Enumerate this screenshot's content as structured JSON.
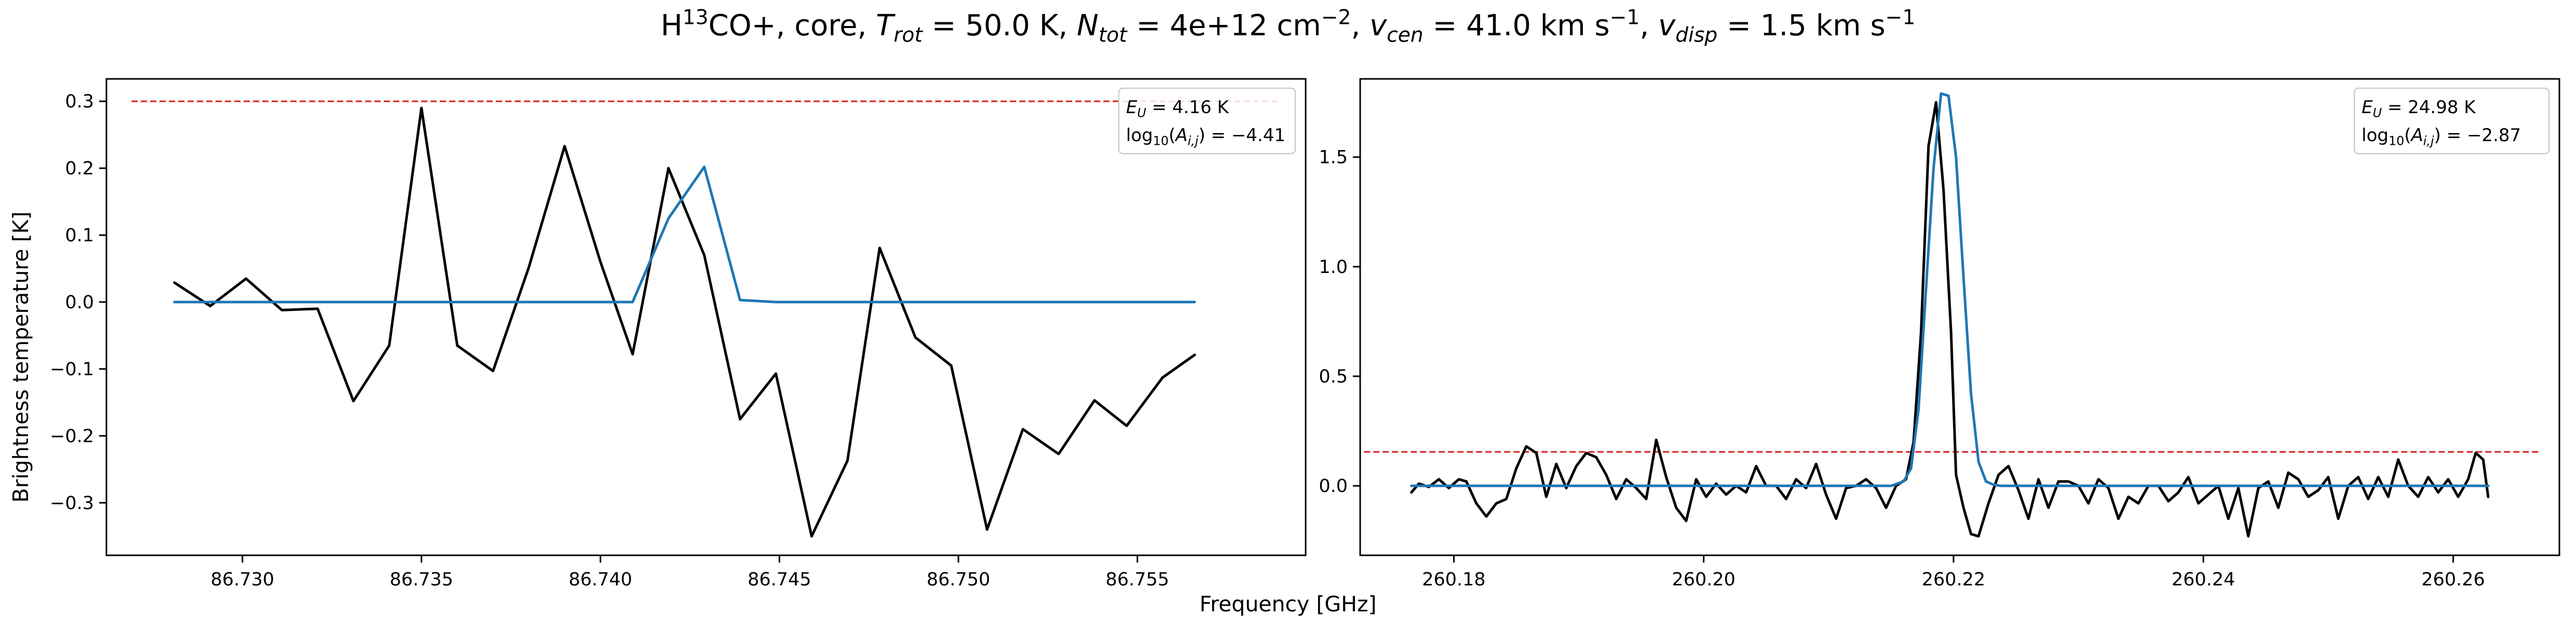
{
  "figure": {
    "title_parts": [
      {
        "t": "H",
        "s": "n"
      },
      {
        "t": "13",
        "s": "sup"
      },
      {
        "t": "CO+, core, ",
        "s": "n"
      },
      {
        "t": "T",
        "s": "i"
      },
      {
        "t": "rot",
        "s": "isub"
      },
      {
        "t": " =  50.0 K, ",
        "s": "n"
      },
      {
        "t": "N",
        "s": "i"
      },
      {
        "t": "tot",
        "s": "isub"
      },
      {
        "t": " =  4e+12 cm",
        "s": "n"
      },
      {
        "t": "−2",
        "s": "sup"
      },
      {
        "t": ", ",
        "s": "n"
      },
      {
        "t": "v",
        "s": "i"
      },
      {
        "t": "cen",
        "s": "isub"
      },
      {
        "t": " =  41.0 km s",
        "s": "n"
      },
      {
        "t": "−1",
        "s": "sup"
      },
      {
        "t": ", ",
        "s": "n"
      },
      {
        "t": "v",
        "s": "i"
      },
      {
        "t": "disp",
        "s": "isub"
      },
      {
        "t": " =  1.5 km s",
        "s": "n"
      },
      {
        "t": "−1",
        "s": "sup"
      }
    ],
    "xlabel": "Frequency [GHz]",
    "ylabel": "Brightness temperature [K]"
  },
  "chart_data": [
    {
      "type": "line",
      "xlim": [
        86.7262,
        86.7597
      ],
      "ylim": [
        -0.3785,
        0.3335
      ],
      "xticks": [
        86.73,
        86.735,
        86.74,
        86.745,
        86.75,
        86.755
      ],
      "xtick_labels": [
        "86.730",
        "86.735",
        "86.740",
        "86.745",
        "86.750",
        "86.755"
      ],
      "yticks": [
        -0.3,
        -0.2,
        -0.1,
        0.0,
        0.1,
        0.2,
        0.3
      ],
      "ytick_labels": [
        "−0.3",
        "−0.2",
        "−0.1",
        "0.0",
        "0.1",
        "0.2",
        "0.3"
      ],
      "annotation_lines": [
        [
          {
            "t": "E",
            "s": "i"
          },
          {
            "t": "U",
            "s": "isub"
          },
          {
            "t": " = 4.16 K",
            "s": "n"
          }
        ],
        [
          {
            "t": "log",
            "s": "n"
          },
          {
            "t": "10",
            "s": "sub"
          },
          {
            "t": "(",
            "s": "n"
          },
          {
            "t": "A",
            "s": "i"
          },
          {
            "t": "i,j",
            "s": "isub"
          },
          {
            "t": ") = −4.41",
            "s": "n"
          }
        ]
      ],
      "threshold": {
        "y": 0.3,
        "x": [
          86.7269,
          86.759
        ],
        "color": "#d62728"
      },
      "series": [
        {
          "role": "observed",
          "color": "#000000",
          "x": [
            86.7281,
            86.7291,
            86.7301,
            86.7311,
            86.7321,
            86.7331,
            86.7341,
            86.735,
            86.736,
            86.737,
            86.738,
            86.739,
            86.74,
            86.7409,
            86.7419,
            86.7429,
            86.7439,
            86.7449,
            86.7459,
            86.7469,
            86.7478,
            86.7488,
            86.7498,
            86.7508,
            86.7518,
            86.7528,
            86.7538,
            86.7547,
            86.7557,
            86.7566
          ],
          "y": [
            0.029,
            -0.006,
            0.035,
            -0.012,
            -0.01,
            -0.148,
            -0.065,
            0.29,
            -0.065,
            -0.103,
            0.052,
            0.233,
            0.06,
            -0.078,
            0.2,
            0.07,
            -0.175,
            -0.107,
            -0.35,
            -0.237,
            0.081,
            -0.053,
            -0.095,
            -0.34,
            -0.19,
            -0.227,
            -0.147,
            -0.185,
            -0.113,
            -0.079
          ]
        },
        {
          "role": "model",
          "color": "#1f77b4",
          "x": [
            86.7281,
            86.7409,
            86.7419,
            86.7429,
            86.7439,
            86.7449,
            86.7566
          ],
          "y": [
            0.0,
            0.0,
            0.125,
            0.202,
            0.003,
            0.0,
            0.0
          ]
        }
      ]
    },
    {
      "type": "line",
      "xlim": [
        260.1725,
        260.2685
      ],
      "ylim": [
        -0.317,
        1.857
      ],
      "xticks": [
        260.18,
        260.2,
        260.22,
        260.24,
        260.26
      ],
      "xtick_labels": [
        "260.18",
        "260.20",
        "260.22",
        "260.24",
        "260.26"
      ],
      "yticks": [
        0.0,
        0.5,
        1.0,
        1.5
      ],
      "ytick_labels": [
        "0.0",
        "0.5",
        "1.0",
        "1.5"
      ],
      "annotation_lines": [
        [
          {
            "t": "E",
            "s": "i"
          },
          {
            "t": "U",
            "s": "isub"
          },
          {
            "t": " = 24.98 K",
            "s": "n"
          }
        ],
        [
          {
            "t": "log",
            "s": "n"
          },
          {
            "t": "10",
            "s": "sub"
          },
          {
            "t": "(",
            "s": "n"
          },
          {
            "t": "A",
            "s": "i"
          },
          {
            "t": "i,j",
            "s": "isub"
          },
          {
            "t": ") = −2.87",
            "s": "n"
          }
        ]
      ],
      "threshold": {
        "y": 0.155,
        "x": [
          260.1728,
          260.267
        ],
        "color": "#d62728"
      },
      "series": [
        {
          "role": "observed",
          "color": "#000000",
          "x": [
            260.1766,
            260.1772,
            260.178,
            260.1788,
            260.1796,
            260.1804,
            260.181,
            260.1818,
            260.1826,
            260.1834,
            260.1842,
            260.185,
            260.1858,
            260.1866,
            260.1874,
            260.1882,
            260.189,
            260.1898,
            260.1906,
            260.1914,
            260.1922,
            260.193,
            260.1938,
            260.1946,
            260.1954,
            260.1962,
            260.197,
            260.1978,
            260.1986,
            260.1994,
            260.2002,
            260.201,
            260.2018,
            260.2026,
            260.2034,
            260.2042,
            260.205,
            260.2058,
            260.2066,
            260.2074,
            260.2082,
            260.209,
            260.2098,
            260.2106,
            260.2114,
            260.2122,
            260.213,
            260.2138,
            260.2146,
            260.2154,
            260.2162,
            260.2168,
            260.2174,
            260.218,
            260.2186,
            260.2192,
            260.2198,
            260.2202,
            260.2208,
            260.2214,
            260.222,
            260.2228,
            260.2236,
            260.2244,
            260.2252,
            260.226,
            260.2268,
            260.2276,
            260.2284,
            260.2292,
            260.23,
            260.2308,
            260.2316,
            260.2324,
            260.2332,
            260.234,
            260.2348,
            260.2356,
            260.2364,
            260.2372,
            260.238,
            260.2388,
            260.2396,
            260.2404,
            260.2412,
            260.242,
            260.2428,
            260.2436,
            260.2444,
            260.2452,
            260.246,
            260.2468,
            260.2476,
            260.2484,
            260.2492,
            260.25,
            260.2508,
            260.2516,
            260.2524,
            260.2532,
            260.254,
            260.2548,
            260.2556,
            260.2564,
            260.2572,
            260.258,
            260.2588,
            260.2596,
            260.2604,
            260.2612,
            260.2618,
            260.2624,
            260.2628
          ],
          "y": [
            -0.03,
            0.01,
            -0.005,
            0.03,
            -0.01,
            0.03,
            0.02,
            -0.08,
            -0.14,
            -0.08,
            -0.06,
            0.08,
            0.18,
            0.15,
            -0.05,
            0.1,
            -0.01,
            0.09,
            0.15,
            0.13,
            0.05,
            -0.06,
            0.03,
            -0.01,
            -0.06,
            0.21,
            0.04,
            -0.1,
            -0.16,
            0.03,
            -0.05,
            0.01,
            -0.04,
            0.0,
            -0.03,
            0.09,
            0.0,
            0.0,
            -0.06,
            0.03,
            -0.01,
            0.1,
            -0.04,
            -0.15,
            -0.01,
            0.0,
            0.03,
            -0.01,
            -0.1,
            0.0,
            0.03,
            0.2,
            0.7,
            1.55,
            1.75,
            1.35,
            0.7,
            0.05,
            -0.1,
            -0.22,
            -0.23,
            -0.08,
            0.05,
            0.09,
            -0.02,
            -0.15,
            0.03,
            -0.1,
            0.02,
            0.02,
            0.0,
            -0.08,
            0.03,
            -0.01,
            -0.15,
            -0.05,
            -0.08,
            0.0,
            0.0,
            -0.07,
            -0.03,
            0.04,
            -0.08,
            -0.04,
            0.0,
            -0.15,
            -0.01,
            -0.23,
            -0.01,
            0.02,
            -0.1,
            0.06,
            0.03,
            -0.05,
            -0.02,
            0.04,
            -0.15,
            0.0,
            0.04,
            -0.06,
            0.04,
            -0.05,
            0.12,
            0.0,
            -0.05,
            0.04,
            -0.03,
            0.03,
            -0.05,
            0.03,
            0.15,
            0.12,
            -0.05
          ]
        },
        {
          "role": "model",
          "color": "#1f77b4",
          "x": [
            260.1766,
            260.215,
            260.216,
            260.2166,
            260.2172,
            260.2178,
            260.2184,
            260.219,
            260.2196,
            260.2202,
            260.2208,
            260.2214,
            260.222,
            260.2226,
            260.2232,
            260.2238,
            260.225,
            260.2628
          ],
          "y": [
            0.0,
            0.0,
            0.02,
            0.08,
            0.35,
            0.9,
            1.45,
            1.79,
            1.78,
            1.5,
            0.95,
            0.42,
            0.11,
            0.02,
            0.005,
            0.0,
            0.0,
            0.0
          ]
        }
      ]
    }
  ]
}
